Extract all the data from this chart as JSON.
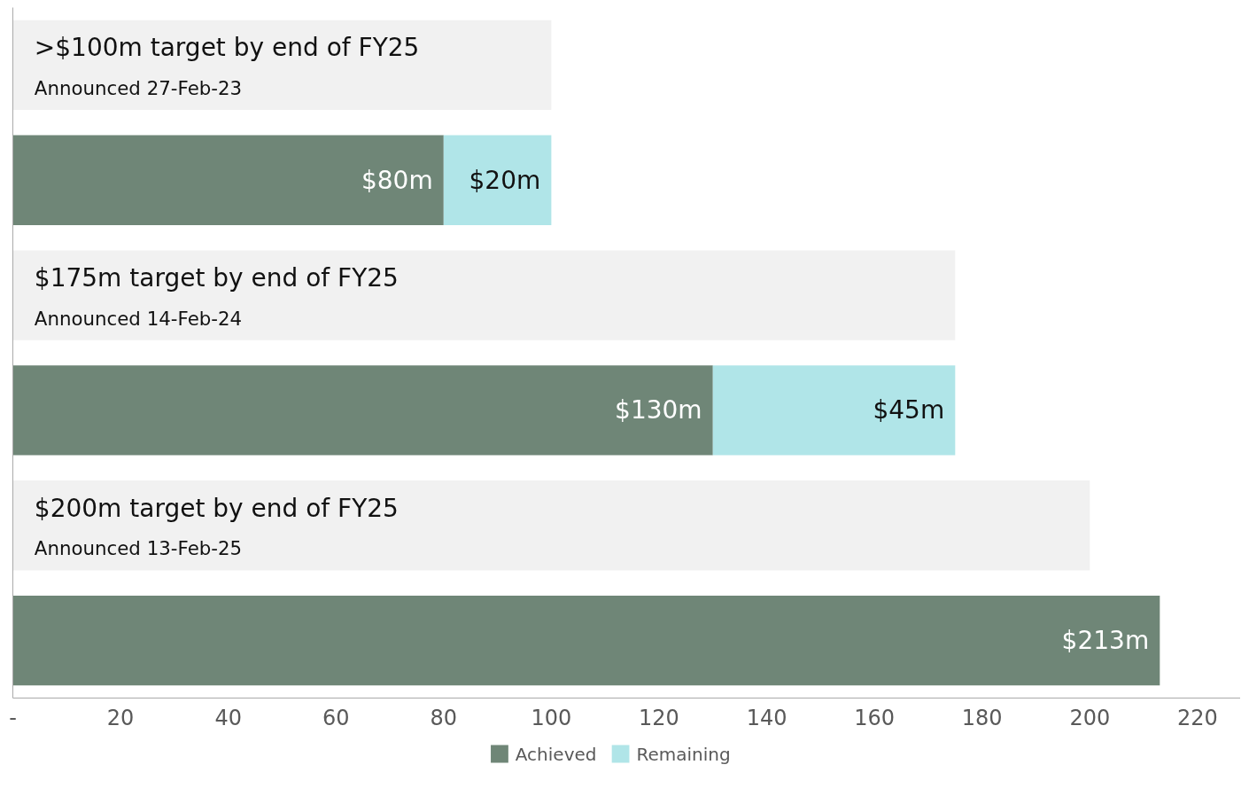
{
  "chart_data": {
    "type": "bar",
    "orientation": "horizontal",
    "stacked": true,
    "categories": [
      null,
      null,
      null,
      null,
      null,
      null
    ],
    "series": [
      {
        "color": "#f1f1f1",
        "values": [
          100,
          null,
          175,
          null,
          200,
          null
        ]
      },
      {
        "name": "Achieved",
        "color": "#6f8677",
        "values": [
          null,
          80,
          null,
          130,
          null,
          213
        ],
        "value_labels": [
          null,
          "$80m",
          null,
          "$130m",
          null,
          "$213m"
        ]
      },
      {
        "name": "Remaining",
        "color": "#b0e5e8",
        "values": [
          null,
          20,
          null,
          45,
          null,
          null
        ],
        "value_labels": [
          null,
          "$20m",
          null,
          "$45m",
          null,
          null
        ]
      }
    ],
    "xlim": [
      0,
      228
    ],
    "xticks": [
      {
        "value": 0,
        "label": "-"
      },
      20,
      40,
      60,
      80,
      100,
      120,
      140,
      160,
      180,
      200,
      220
    ],
    "annotations": [
      ">$100m target by end of FY25\nAnnounced 27-Feb-23",
      "$175m target by end of FY25\nAnnounced 14-Feb-24",
      "$200m target by end of FY25\nAnnounced 13-Feb-25"
    ],
    "grid": false,
    "legend": "bottom"
  }
}
